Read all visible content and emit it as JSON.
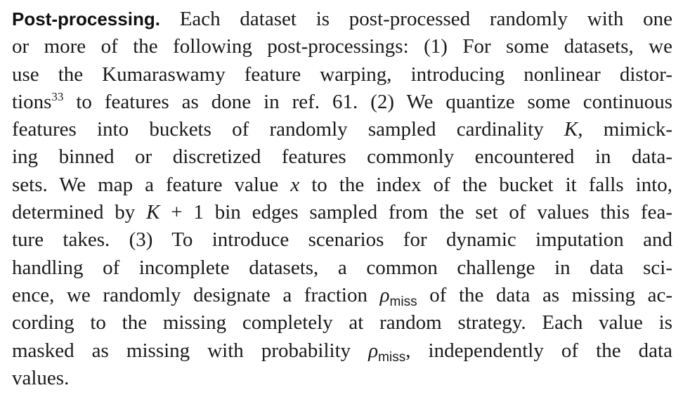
{
  "paragraph": {
    "heading": "Post-processing.",
    "lines": [
      [
        "Each dataset is post-processed randomly with one"
      ],
      [
        "or more of the following post-processings: (1) For some datasets, we"
      ],
      [
        "use the Kumaraswamy feature warping, introducing nonlinear distor-"
      ],
      [
        "tions",
        "33",
        " to features as done in ref. 61. (2) We quantize some continuous"
      ],
      [
        "features into buckets of randomly sampled cardinality ",
        "K",
        ", mimick-"
      ],
      [
        "ing binned or discretized features commonly encountered in data-"
      ],
      [
        "sets. We map a feature value ",
        "x",
        " to the index of the bucket it falls into,"
      ],
      [
        "determined by ",
        "K",
        " + 1 bin edges sampled from the set of values this fea-"
      ],
      [
        "ture takes. (3) To introduce scenarios for dynamic imputation and"
      ],
      [
        "handling of incomplete datasets, a common challenge in data sci-"
      ],
      [
        "ence, we randomly designate a fraction ",
        "ρ",
        "miss",
        " of the data as missing ac-"
      ],
      [
        "cording to the missing completely at random strategy. Each value is"
      ],
      [
        "masked as missing with probability ",
        "ρ",
        "miss",
        ", independently of the data"
      ],
      [
        "values."
      ]
    ]
  }
}
